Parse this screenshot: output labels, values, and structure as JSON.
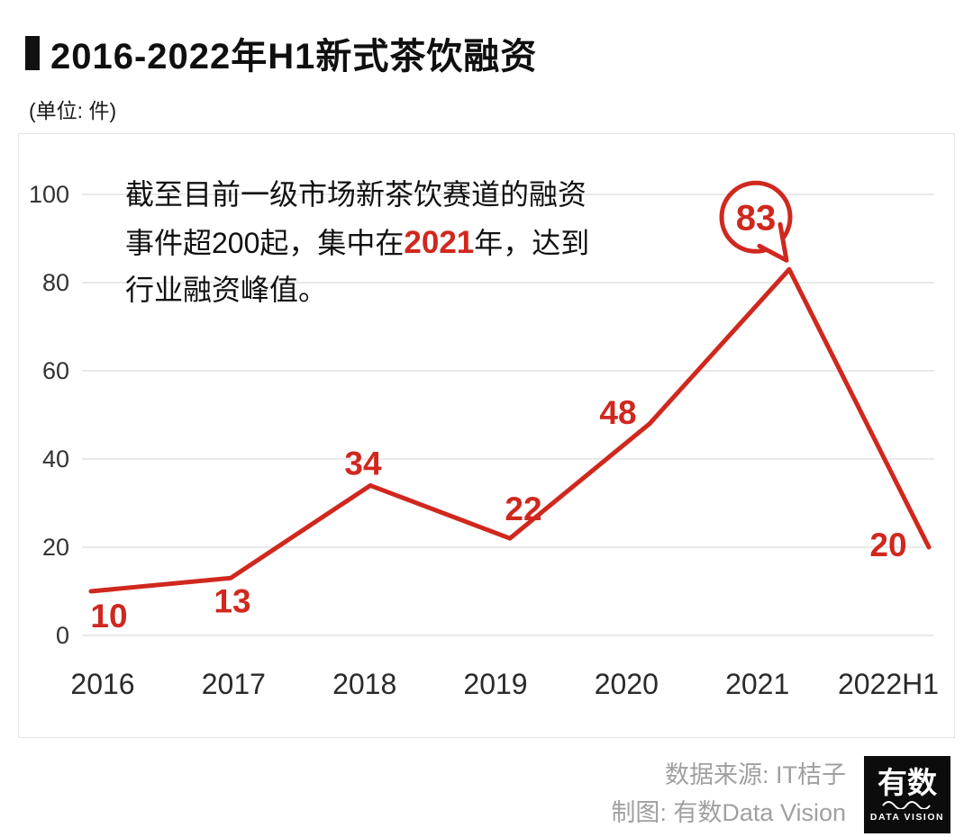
{
  "header": {
    "title": "2016-2022年H1新式茶饮融资",
    "unit_label": "(单位: 件)"
  },
  "annotation": {
    "line1": "截至目前一级市场新茶饮赛道的融资",
    "line2_pre": "事件超200起，集中在",
    "highlight": "2021",
    "line2_post": "年，达到",
    "line3": "行业融资峰值。"
  },
  "chart_data": {
    "type": "line",
    "title": "2016-2022年H1新式茶饮融资",
    "unit": "件",
    "categories": [
      "2016",
      "2017",
      "2018",
      "2019",
      "2020",
      "2021",
      "2022H1"
    ],
    "values": [
      10,
      13,
      34,
      22,
      48,
      83,
      20
    ],
    "ylim": [
      0,
      100
    ],
    "yticks": [
      0,
      20,
      40,
      60,
      80,
      100
    ],
    "grid": true,
    "line_color": "#d0281e",
    "highlight_index": 5,
    "highlight_value": 83,
    "legend": "none"
  },
  "footer": {
    "source_line": "数据来源: IT桔子",
    "credit_line": "制图: 有数Data Vision",
    "logo": {
      "name": "有数",
      "sub": "DATA VISION"
    }
  },
  "colors": {
    "accent": "#d0281e",
    "text": "#111111",
    "muted": "#a0a0a0",
    "grid": "#e2e2e2",
    "axis_text": "#333333"
  }
}
